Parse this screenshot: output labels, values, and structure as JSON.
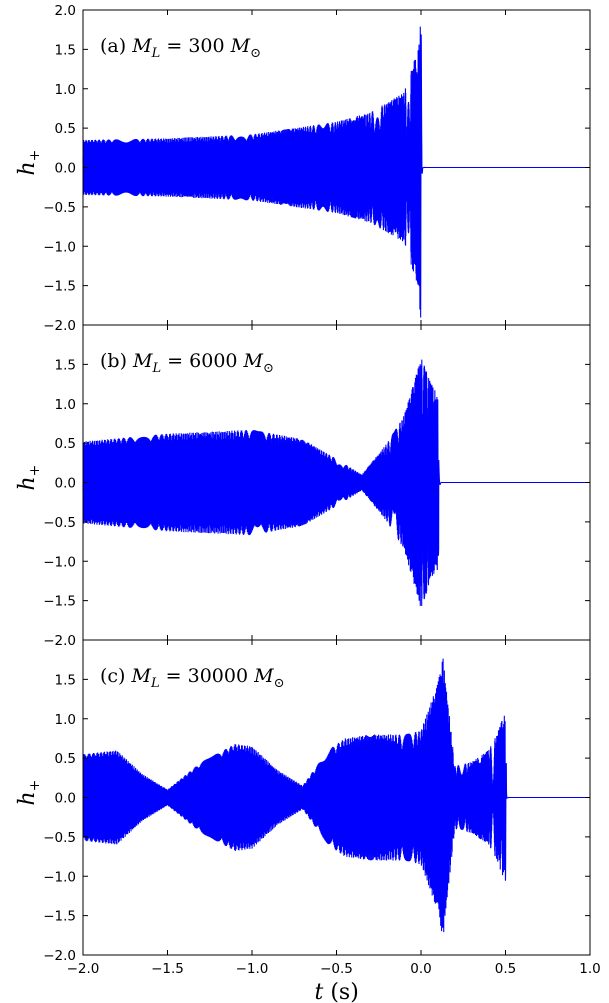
{
  "chart_data": [
    {
      "type": "line",
      "panel": "a",
      "annotation": "(a) M_L = 300 M_⊙",
      "annotation_parts": {
        "prefix": "(a)",
        "var": "M",
        "var_sub": "L",
        "eq": "=",
        "value": "300",
        "unit": "M",
        "unit_sub": "⊙"
      },
      "ylabel": "h+",
      "ylabel_parts": {
        "main": "h",
        "sub": "+"
      },
      "xlim": [
        -2.0,
        1.0
      ],
      "ylim": [
        -2.0,
        2.0
      ],
      "yticks": [
        "2.0",
        "1.5",
        "1.0",
        "0.5",
        "0.0",
        "−0.5",
        "−1.0",
        "−1.5",
        "−2.0"
      ],
      "merger_time_s": 0.0,
      "envelope_t": [
        -2.0,
        -1.5,
        -1.0,
        -0.5,
        -0.3,
        -0.1,
        -0.02,
        0.0,
        0.01,
        1.0
      ],
      "envelope_amp": [
        0.35,
        0.37,
        0.42,
        0.58,
        0.7,
        0.95,
        1.5,
        1.95,
        0.05,
        0.0
      ],
      "series": [
        {
          "values_description": ""
        }
      ]
    },
    {
      "type": "line",
      "panel": "b",
      "annotation": "(b) M_L = 6000 M_⊙",
      "annotation_parts": {
        "prefix": "(b)",
        "var": "M",
        "var_sub": "L",
        "eq": "=",
        "value": "6000",
        "unit": "M",
        "unit_sub": "⊙"
      },
      "ylabel": "h+",
      "ylabel_parts": {
        "main": "h",
        "sub": "+"
      },
      "xlim": [
        -2.0,
        1.0
      ],
      "ylim": [
        -2.0,
        2.0
      ],
      "yticks": [
        "1.5",
        "1.0",
        "0.5",
        "0.0",
        "−0.5",
        "−1.0",
        "−1.5",
        "−2.0"
      ],
      "merger_time_s": 0.1,
      "envelope_t": [
        -2.0,
        -1.5,
        -1.0,
        -0.7,
        -0.5,
        -0.35,
        -0.2,
        -0.1,
        0.0,
        0.05,
        0.1,
        0.12,
        1.0
      ],
      "envelope_amp": [
        0.52,
        0.62,
        0.67,
        0.55,
        0.3,
        0.1,
        0.5,
        0.85,
        1.6,
        1.3,
        1.1,
        0.05,
        0.0
      ]
    },
    {
      "type": "line",
      "panel": "c",
      "annotation": "(c) M_L = 30000 M_⊙",
      "annotation_parts": {
        "prefix": "(c)",
        "var": "M",
        "var_sub": "L",
        "eq": "=",
        "value": "30000",
        "unit": "M",
        "unit_sub": "⊙"
      },
      "ylabel": "h+",
      "ylabel_parts": {
        "main": "h",
        "sub": "+"
      },
      "xlabel": "t (s)",
      "xlabel_parts": {
        "var": "t",
        "unit": "(s)"
      },
      "xlim": [
        -2.0,
        1.0
      ],
      "ylim": [
        -2.0,
        2.0
      ],
      "xticks": [
        "−2.0",
        "−1.5",
        "−1.0",
        "−0.5",
        "0.0",
        "0.5",
        "1.0"
      ],
      "yticks": [
        "1.5",
        "1.0",
        "0.5",
        "0.0",
        "−0.5",
        "−1.0",
        "−1.5",
        "−2.0"
      ],
      "merger_time_s": 0.5,
      "envelope_t": [
        -2.0,
        -1.8,
        -1.65,
        -1.5,
        -1.3,
        -1.1,
        -1.0,
        -0.85,
        -0.7,
        -0.55,
        -0.45,
        -0.3,
        -0.1,
        0.0,
        0.1,
        0.13,
        0.2,
        0.3,
        0.4,
        0.45,
        0.5,
        0.51,
        1.0
      ],
      "envelope_amp": [
        0.55,
        0.6,
        0.3,
        0.1,
        0.45,
        0.68,
        0.65,
        0.35,
        0.15,
        0.6,
        0.75,
        0.8,
        0.8,
        0.85,
        1.45,
        1.8,
        0.4,
        0.45,
        0.6,
        0.8,
        1.1,
        0.05,
        0.0
      ]
    }
  ],
  "colors": {
    "line": "#0000ff",
    "axes": "#000000"
  }
}
